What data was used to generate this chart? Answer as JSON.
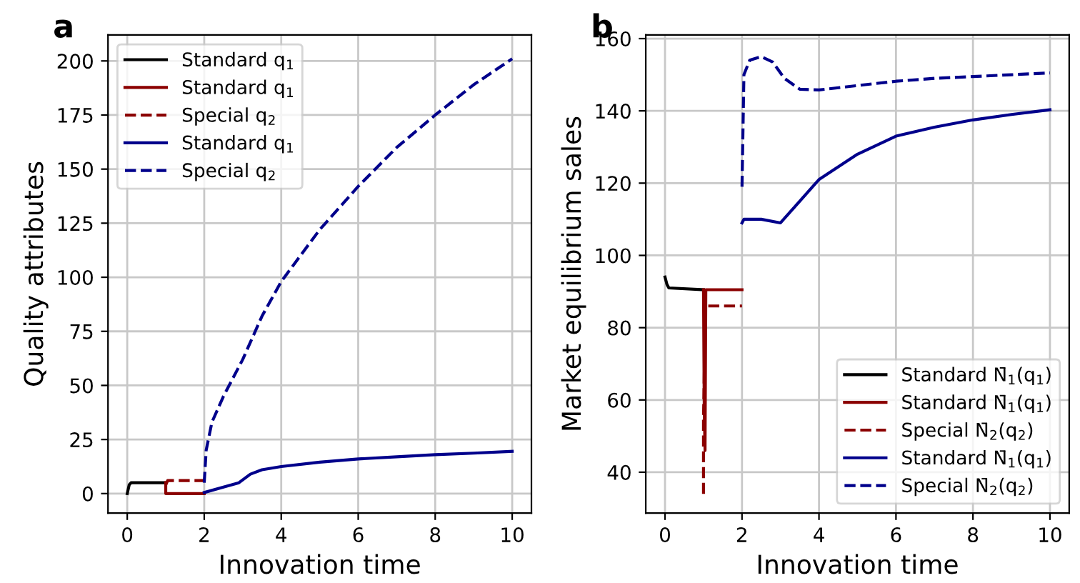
{
  "chart_data": [
    {
      "type": "line",
      "title": "a",
      "xlabel": "Innovation time",
      "ylabel": "Quality attributes",
      "xlim": [
        -0.5,
        10.5
      ],
      "ylim": [
        -9,
        212
      ],
      "xticks": [
        0,
        2,
        4,
        6,
        8,
        10
      ],
      "yticks": [
        0,
        25,
        50,
        75,
        100,
        125,
        150,
        175,
        200
      ],
      "grid": true,
      "legend": "top left",
      "marker": "none",
      "series": [
        {
          "name": "Standard q$_{1}$",
          "color": "#000000",
          "line_style": "solid",
          "x": [
            0,
            0.05,
            0.1,
            1.0
          ],
          "values": [
            0,
            4,
            5,
            5
          ]
        },
        {
          "name": "Standard q$_{1}$",
          "color": "#8b0000",
          "line_style": "solid",
          "x": [
            1.0,
            1.0,
            2.0
          ],
          "values": [
            5,
            0,
            0
          ]
        },
        {
          "name": "Special q$_{2}$",
          "color": "#8b0000",
          "line_style": "dashed",
          "x": [
            1.0,
            1.05,
            2.0
          ],
          "values": [
            4,
            6,
            6
          ]
        },
        {
          "name": "Standard q$_{1}$",
          "color": "#00008b",
          "line_style": "solid",
          "x": [
            2,
            2.5,
            2.9,
            3.2,
            3.5,
            4,
            5,
            6,
            7,
            8,
            9,
            10
          ],
          "values": [
            0.5,
            3,
            5,
            9,
            11,
            12.5,
            14.5,
            16,
            17,
            18,
            18.7,
            19.5
          ]
        },
        {
          "name": "Special q$_{2}$",
          "color": "#00008b",
          "line_style": "dashed",
          "x": [
            2,
            2.05,
            2.2,
            2.5,
            3,
            3.5,
            4,
            5,
            6,
            7,
            8,
            9,
            10
          ],
          "values": [
            5,
            20,
            33,
            45,
            62,
            82,
            98,
            122,
            142,
            160,
            175,
            189,
            201
          ]
        }
      ]
    },
    {
      "type": "line",
      "title": "b",
      "xlabel": "Innovation time",
      "ylabel": "Market equilibrium sales",
      "xlim": [
        -0.5,
        10.5
      ],
      "ylim": [
        28.7,
        161
      ],
      "xticks": [
        0,
        2,
        4,
        6,
        8,
        10
      ],
      "yticks": [
        40,
        60,
        80,
        100,
        120,
        140,
        160
      ],
      "grid": true,
      "legend": "bottom right",
      "marker": "none",
      "series": [
        {
          "name": "Standard N̄$_{1}$(q$_{1}$)",
          "color": "#000000",
          "line_style": "solid",
          "x": [
            0,
            0.05,
            0.1,
            1.0
          ],
          "values": [
            94,
            92,
            91,
            90.5
          ]
        },
        {
          "name": "Standard N̄$_{1}$(q$_{1}$)",
          "color": "#8b0000",
          "line_style": "solid",
          "x": [
            1.0,
            1.02,
            1.04,
            1.06,
            2.0
          ],
          "values": [
            90.5,
            57,
            46,
            90.5,
            90.5
          ]
        },
        {
          "name": "Special N̄$_{2}$(q$_{2}$)",
          "color": "#8b0000",
          "line_style": "dashed",
          "x": [
            1.0,
            1.0,
            1.05,
            1.1,
            2.0
          ],
          "values": [
            34,
            55,
            85,
            86,
            86
          ]
        },
        {
          "name": "Standard N̄$_{1}$(q$_{1}$)",
          "color": "#00008b",
          "line_style": "solid",
          "x": [
            2,
            2.05,
            2.5,
            3,
            3.5,
            4,
            5,
            6,
            7,
            8,
            9,
            10
          ],
          "values": [
            109,
            110,
            110,
            109,
            115,
            121,
            128,
            133,
            135.5,
            137.5,
            139,
            140.3
          ]
        },
        {
          "name": "Special N̄$_{2}$(q$_{2}$)",
          "color": "#00008b",
          "line_style": "dashed",
          "x": [
            2,
            2.05,
            2.2,
            2.5,
            2.8,
            3.1,
            3.5,
            4,
            5,
            6,
            7,
            8,
            9,
            10
          ],
          "values": [
            119,
            150,
            154,
            155,
            153.5,
            149,
            146,
            145.8,
            147,
            148.2,
            149,
            149.5,
            150,
            150.5
          ]
        }
      ]
    }
  ]
}
